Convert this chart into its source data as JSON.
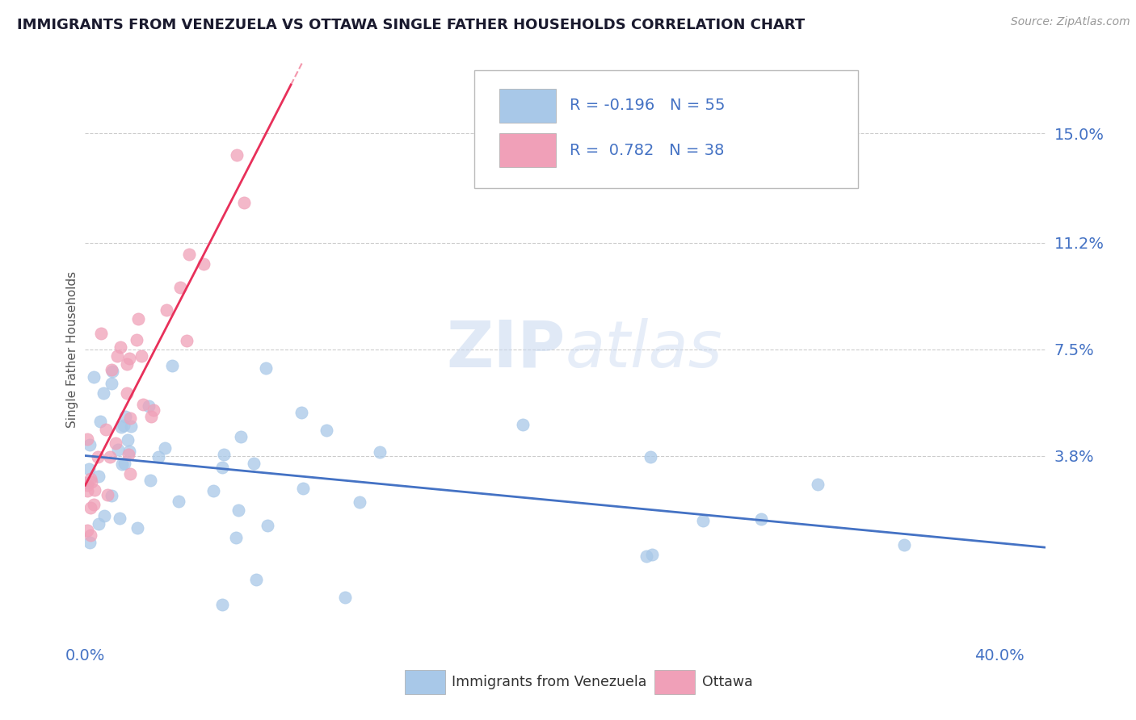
{
  "title": "IMMIGRANTS FROM VENEZUELA VS OTTAWA SINGLE FATHER HOUSEHOLDS CORRELATION CHART",
  "source_text": "Source: ZipAtlas.com",
  "ylabel": "Single Father Households",
  "xlim": [
    0.0,
    0.42
  ],
  "ylim": [
    -0.025,
    0.175
  ],
  "yticks_right": [
    0.038,
    0.075,
    0.112,
    0.15
  ],
  "ytick_labels_right": [
    "3.8%",
    "7.5%",
    "11.2%",
    "15.0%"
  ],
  "blue_color": "#A8C8E8",
  "pink_color": "#F0A0B8",
  "blue_line_color": "#4472C4",
  "pink_line_color": "#E8305A",
  "axis_color": "#4472C4",
  "grid_color": "#CCCCCC",
  "title_color": "#1A1A2E",
  "legend_label1": "Immigrants from Venezuela",
  "legend_label2": "Ottawa",
  "blue_R": "-0.196",
  "blue_N": "55",
  "pink_R": "0.782",
  "pink_N": "38",
  "watermark_zip_color": "#C8D8F0",
  "watermark_atlas_color": "#C8D8F0"
}
